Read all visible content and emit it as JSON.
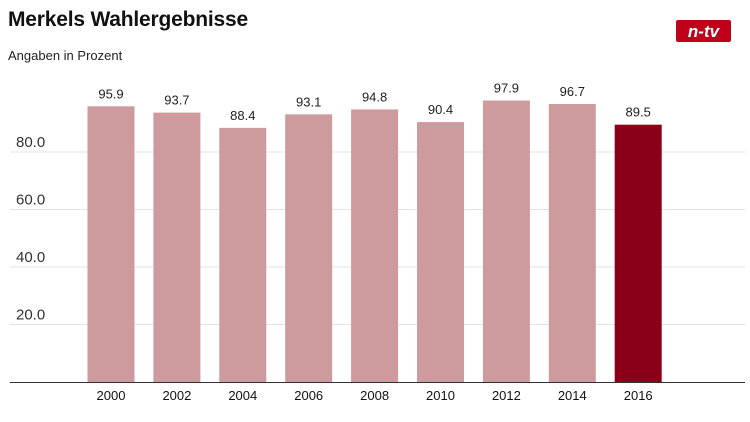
{
  "branding": {
    "logo_text": "n-tv",
    "logo_color": "#c0001a"
  },
  "chart_data": {
    "type": "bar",
    "title": "Merkels Wahlergebnisse",
    "subtitle": "Angaben in Prozent",
    "categories": [
      "2000",
      "2002",
      "2004",
      "2006",
      "2008",
      "2010",
      "2012",
      "2014",
      "2016"
    ],
    "values": [
      95.9,
      93.7,
      88.4,
      93.1,
      94.8,
      90.4,
      97.9,
      96.7,
      89.5
    ],
    "value_labels": [
      "95.9",
      "93.7",
      "88.4",
      "93.1",
      "94.8",
      "90.4",
      "97.9",
      "96.7",
      "89.5"
    ],
    "highlight_index": 8,
    "yticks": [
      20,
      40,
      60,
      80
    ],
    "ytick_labels": [
      "20.0",
      "40.0",
      "60.0",
      "80.0"
    ],
    "ylim": [
      0,
      100
    ],
    "xlabel": "",
    "ylabel": "",
    "grid": true,
    "legend": "none",
    "colors": {
      "bar": "#cd9a9d",
      "highlight": "#8b0019",
      "grid": "#e3e3e3",
      "axis": "#333333"
    }
  }
}
